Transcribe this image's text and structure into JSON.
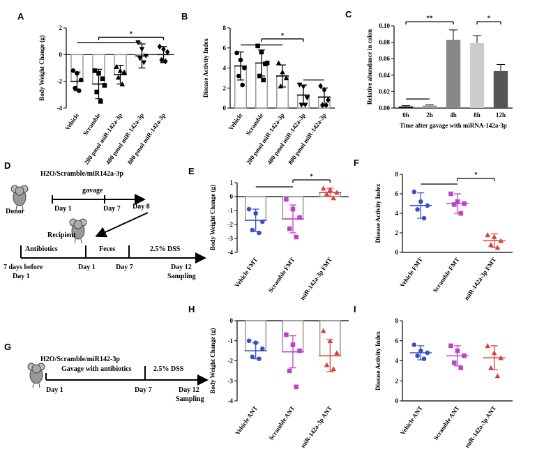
{
  "chart_data": [
    {
      "type": "dotplot",
      "panel_label": "A",
      "ylabel": "Body Weight Change (g)",
      "categories": [
        "Vehicle",
        "Scramble",
        "200 pmol miR-142a-3p",
        "400 pmol miR-142a-3p",
        "800 pmol miR-142a-3p"
      ],
      "values": [
        -2.0,
        -2.2,
        -1.5,
        -0.1,
        0.0
      ],
      "errors": [
        0.7,
        1.1,
        0.7,
        0.9,
        0.6
      ],
      "points": [
        [
          -1.2,
          -1.4,
          -1.9,
          -2.5,
          -2.7
        ],
        [
          -1.2,
          -1.4,
          -1.8,
          -2.8,
          -3.5,
          -2.3
        ],
        [
          -0.9,
          -1.2,
          -1.3,
          -1.7,
          -2.2
        ],
        [
          0.9,
          0.4,
          -0.1,
          -0.3,
          -0.6
        ],
        [
          0.6,
          0.4,
          0.2,
          -0.4,
          -0.5
        ]
      ],
      "colors": [
        "#000",
        "#000",
        "#000",
        "#000",
        "#000"
      ],
      "markers": [
        "circle",
        "square",
        "triangle",
        "triangle-down",
        "diamond"
      ],
      "bars": true,
      "ylim": [
        -4,
        2
      ],
      "yticks": [
        -4,
        -2,
        0,
        2
      ],
      "brackets": [
        {
          "span": [
            "Vehicle",
            "400 pmol miR-142a-3p"
          ],
          "y": 0.9
        },
        {
          "span": [
            "Scramble",
            "800 pmol miR-142a-3p"
          ],
          "y": 1.3,
          "label": "*"
        }
      ]
    },
    {
      "type": "dotplot",
      "panel_label": "B",
      "ylabel": "Disease Activity Index",
      "categories": [
        "Vehicle",
        "Scramble",
        "200 pmol miR-142a-3p",
        "400 pmol miR-142a-3p",
        "800 pmol miR-142a-3p"
      ],
      "values": [
        4.2,
        4.5,
        3.2,
        1.3,
        1.1
      ],
      "errors": [
        1.4,
        1.3,
        1.1,
        1.0,
        0.9
      ],
      "points": [
        [
          5.5,
          4.8,
          4.0,
          3.2,
          2.3
        ],
        [
          6.2,
          5.6,
          4.4,
          3.2,
          2.8,
          4.5
        ],
        [
          4.5,
          3.6,
          3.0,
          2.2
        ],
        [
          2.3,
          2.1,
          1.0,
          0.3,
          0.3
        ],
        [
          2.2,
          1.8,
          0.8,
          0.3,
          0.3
        ]
      ],
      "colors": [
        "#000",
        "#000",
        "#000",
        "#000",
        "#000"
      ],
      "markers": [
        "circle",
        "square",
        "triangle",
        "triangle-down",
        "diamond"
      ],
      "bars": true,
      "ylim": [
        0,
        8
      ],
      "yticks": [
        0,
        2,
        4,
        6,
        8
      ],
      "brackets": [
        {
          "span": [
            "Vehicle",
            "200 pmol miR-142a-3p"
          ],
          "y": 6.3
        },
        {
          "span": [
            "Scramble",
            "400 pmol miR-142a-3p"
          ],
          "y": 6.9,
          "label": "*"
        },
        {
          "span": [
            "400 pmol miR-142a-3p",
            "800 pmol miR-142a-3p"
          ],
          "y": 2.8
        }
      ]
    },
    {
      "type": "bar",
      "panel_label": "C",
      "ylabel": "Relative abundance in colon",
      "xlabel": "Time after gavage with miRNA-142a-3p",
      "categories": [
        "0h",
        "2h",
        "4h",
        "8h",
        "12h"
      ],
      "values": [
        0.002,
        0.003,
        0.083,
        0.079,
        0.045
      ],
      "errors": [
        0.001,
        0.001,
        0.012,
        0.009,
        0.008
      ],
      "colors": [
        "#111",
        "#999",
        "#888",
        "#ccc",
        "#555"
      ],
      "ylim": [
        0,
        0.1
      ],
      "yticks": [
        {
          "value": 0,
          "label": "0.00"
        },
        0.02,
        0.04,
        0.06,
        0.08,
        {
          "value": 0.1,
          "label": "0.10"
        }
      ],
      "brackets": [
        {
          "span": [
            "0h",
            "2h"
          ],
          "y": 0.011
        },
        {
          "span": [
            "0h",
            "4h"
          ],
          "y": 0.105,
          "label": "**"
        },
        {
          "span": [
            "8h",
            "12h"
          ],
          "y": 0.105,
          "label": "*"
        }
      ]
    },
    {
      "type": "dotplot",
      "panel_label": "E",
      "ylabel": "Body Weight Change (g)",
      "categories": [
        "Vehicle FMT",
        "Scramble FMT",
        "miR-142a-3p FMT"
      ],
      "values": [
        -1.7,
        -1.6,
        0.3
      ],
      "errors": [
        0.8,
        1.0,
        0.3
      ],
      "points": [
        [
          -0.9,
          -1.2,
          -1.8,
          -2.4,
          -2.6
        ],
        [
          -0.2,
          -0.9,
          -1.5,
          -2.3,
          -2.9
        ],
        [
          0.6,
          0.5,
          0.3,
          0.2,
          -0.1
        ]
      ],
      "colors": [
        "#3a4fc4",
        "#c040c8",
        "#d8403a"
      ],
      "markers": [
        "circle",
        "square",
        "triangle"
      ],
      "bars": true,
      "ylim": [
        -4,
        1
      ],
      "yticks": [
        -4,
        -3,
        -2,
        -1,
        0,
        1
      ],
      "brackets": [
        {
          "span": [
            "Vehicle FMT",
            "Scramble FMT"
          ],
          "y": 0.7
        },
        {
          "span": [
            "Scramble FMT",
            "miR-142a-3p FMT"
          ],
          "y": 1.2,
          "label": "*"
        }
      ]
    },
    {
      "type": "dotplot",
      "panel_label": "F",
      "ylabel": "Disease Activity Index",
      "categories": [
        "Vehicle FMT",
        "Scramble FMT",
        "miR-142a-3p FMT"
      ],
      "values": [
        4.8,
        5.0,
        1.2
      ],
      "errors": [
        1.3,
        1.0,
        0.7
      ],
      "points": [
        [
          6.2,
          5.2,
          4.8,
          4.4,
          3.5
        ],
        [
          6.0,
          5.2,
          5.0,
          4.9,
          4.0
        ],
        [
          1.8,
          1.6,
          1.2,
          0.8,
          0.5
        ]
      ],
      "colors": [
        "#3a4fc4",
        "#c040c8",
        "#d8403a"
      ],
      "markers": [
        "circle",
        "square",
        "triangle"
      ],
      "bars": false,
      "ylim": [
        0,
        8
      ],
      "yticks": [
        0,
        2,
        4,
        6,
        8
      ],
      "brackets": [
        {
          "span": [
            "Vehicle FMT",
            "Scramble FMT"
          ],
          "y": 7.0
        },
        {
          "span": [
            "Scramble FMT",
            "miR-142a-3p FMT"
          ],
          "y": 7.6,
          "label": "*"
        }
      ]
    },
    {
      "type": "dotplot",
      "panel_label": "H",
      "ylabel": "Body Weight Change (g)",
      "categories": [
        "Vehicle ANT",
        "Scramble ANT",
        "miR-142a-3p ANT"
      ],
      "values": [
        -1.5,
        -1.55,
        -1.75
      ],
      "errors": [
        0.4,
        0.8,
        0.8
      ],
      "points": [
        [
          -1.0,
          -1.1,
          -1.4,
          -1.8,
          -1.9
        ],
        [
          -0.7,
          -1.2,
          -1.5,
          -2.5,
          -3.3
        ],
        [
          -0.5,
          -1.0,
          -1.6,
          -2.2,
          -2.4
        ]
      ],
      "colors": [
        "#3a4fc4",
        "#c040c8",
        "#d8403a"
      ],
      "markers": [
        "circle",
        "square",
        "triangle"
      ],
      "bars": true,
      "ylim": [
        -4,
        0
      ],
      "yticks": [
        -4,
        -3,
        -2,
        -1,
        0
      ],
      "brackets": []
    },
    {
      "type": "dotplot",
      "panel_label": "I",
      "ylabel": "Disease Activity Index",
      "categories": [
        "Vehicle ANT",
        "Scramble ANT",
        "miR-142a-3p ANT"
      ],
      "values": [
        4.8,
        4.5,
        4.3
      ],
      "errors": [
        0.7,
        1.0,
        1.2
      ],
      "points": [
        [
          5.6,
          5.0,
          4.8,
          4.5,
          4.2
        ],
        [
          5.5,
          5.0,
          4.5,
          3.8,
          3.3
        ],
        [
          5.5,
          4.8,
          4.3,
          3.3,
          2.5
        ]
      ],
      "colors": [
        "#3a4fc4",
        "#c040c8",
        "#d8403a"
      ],
      "markers": [
        "circle",
        "square",
        "triangle"
      ],
      "bars": false,
      "ylim": [
        0,
        8
      ],
      "yticks": [
        0,
        2,
        4,
        6,
        8
      ],
      "brackets": []
    }
  ],
  "diagrams": [
    {
      "panel_label": "D",
      "treatment": "H2O/Scramble/miR142a-3p",
      "donor_step": "gavage",
      "donor": "Donor",
      "donor_days": [
        "Day 1",
        "Day 7",
        "Day 8"
      ],
      "recipient": "Recipient",
      "phases": [
        "Antibiotics",
        "Feces",
        "2.5% DSS"
      ],
      "timeline": [
        [
          "7 days before",
          "Day 1"
        ],
        [
          "Day 1"
        ],
        [
          "Day 7"
        ],
        [
          "Day 12",
          "Sampling"
        ]
      ]
    },
    {
      "panel_label": "G",
      "treatment": "H2O/Scramble/miR142-3p",
      "phases": [
        "Gavage with antibiotics",
        "2.5% DSS"
      ],
      "timeline": [
        [
          "Day 1"
        ],
        [
          "Day 7"
        ],
        [
          "Day 12",
          "Sampling"
        ]
      ]
    }
  ]
}
